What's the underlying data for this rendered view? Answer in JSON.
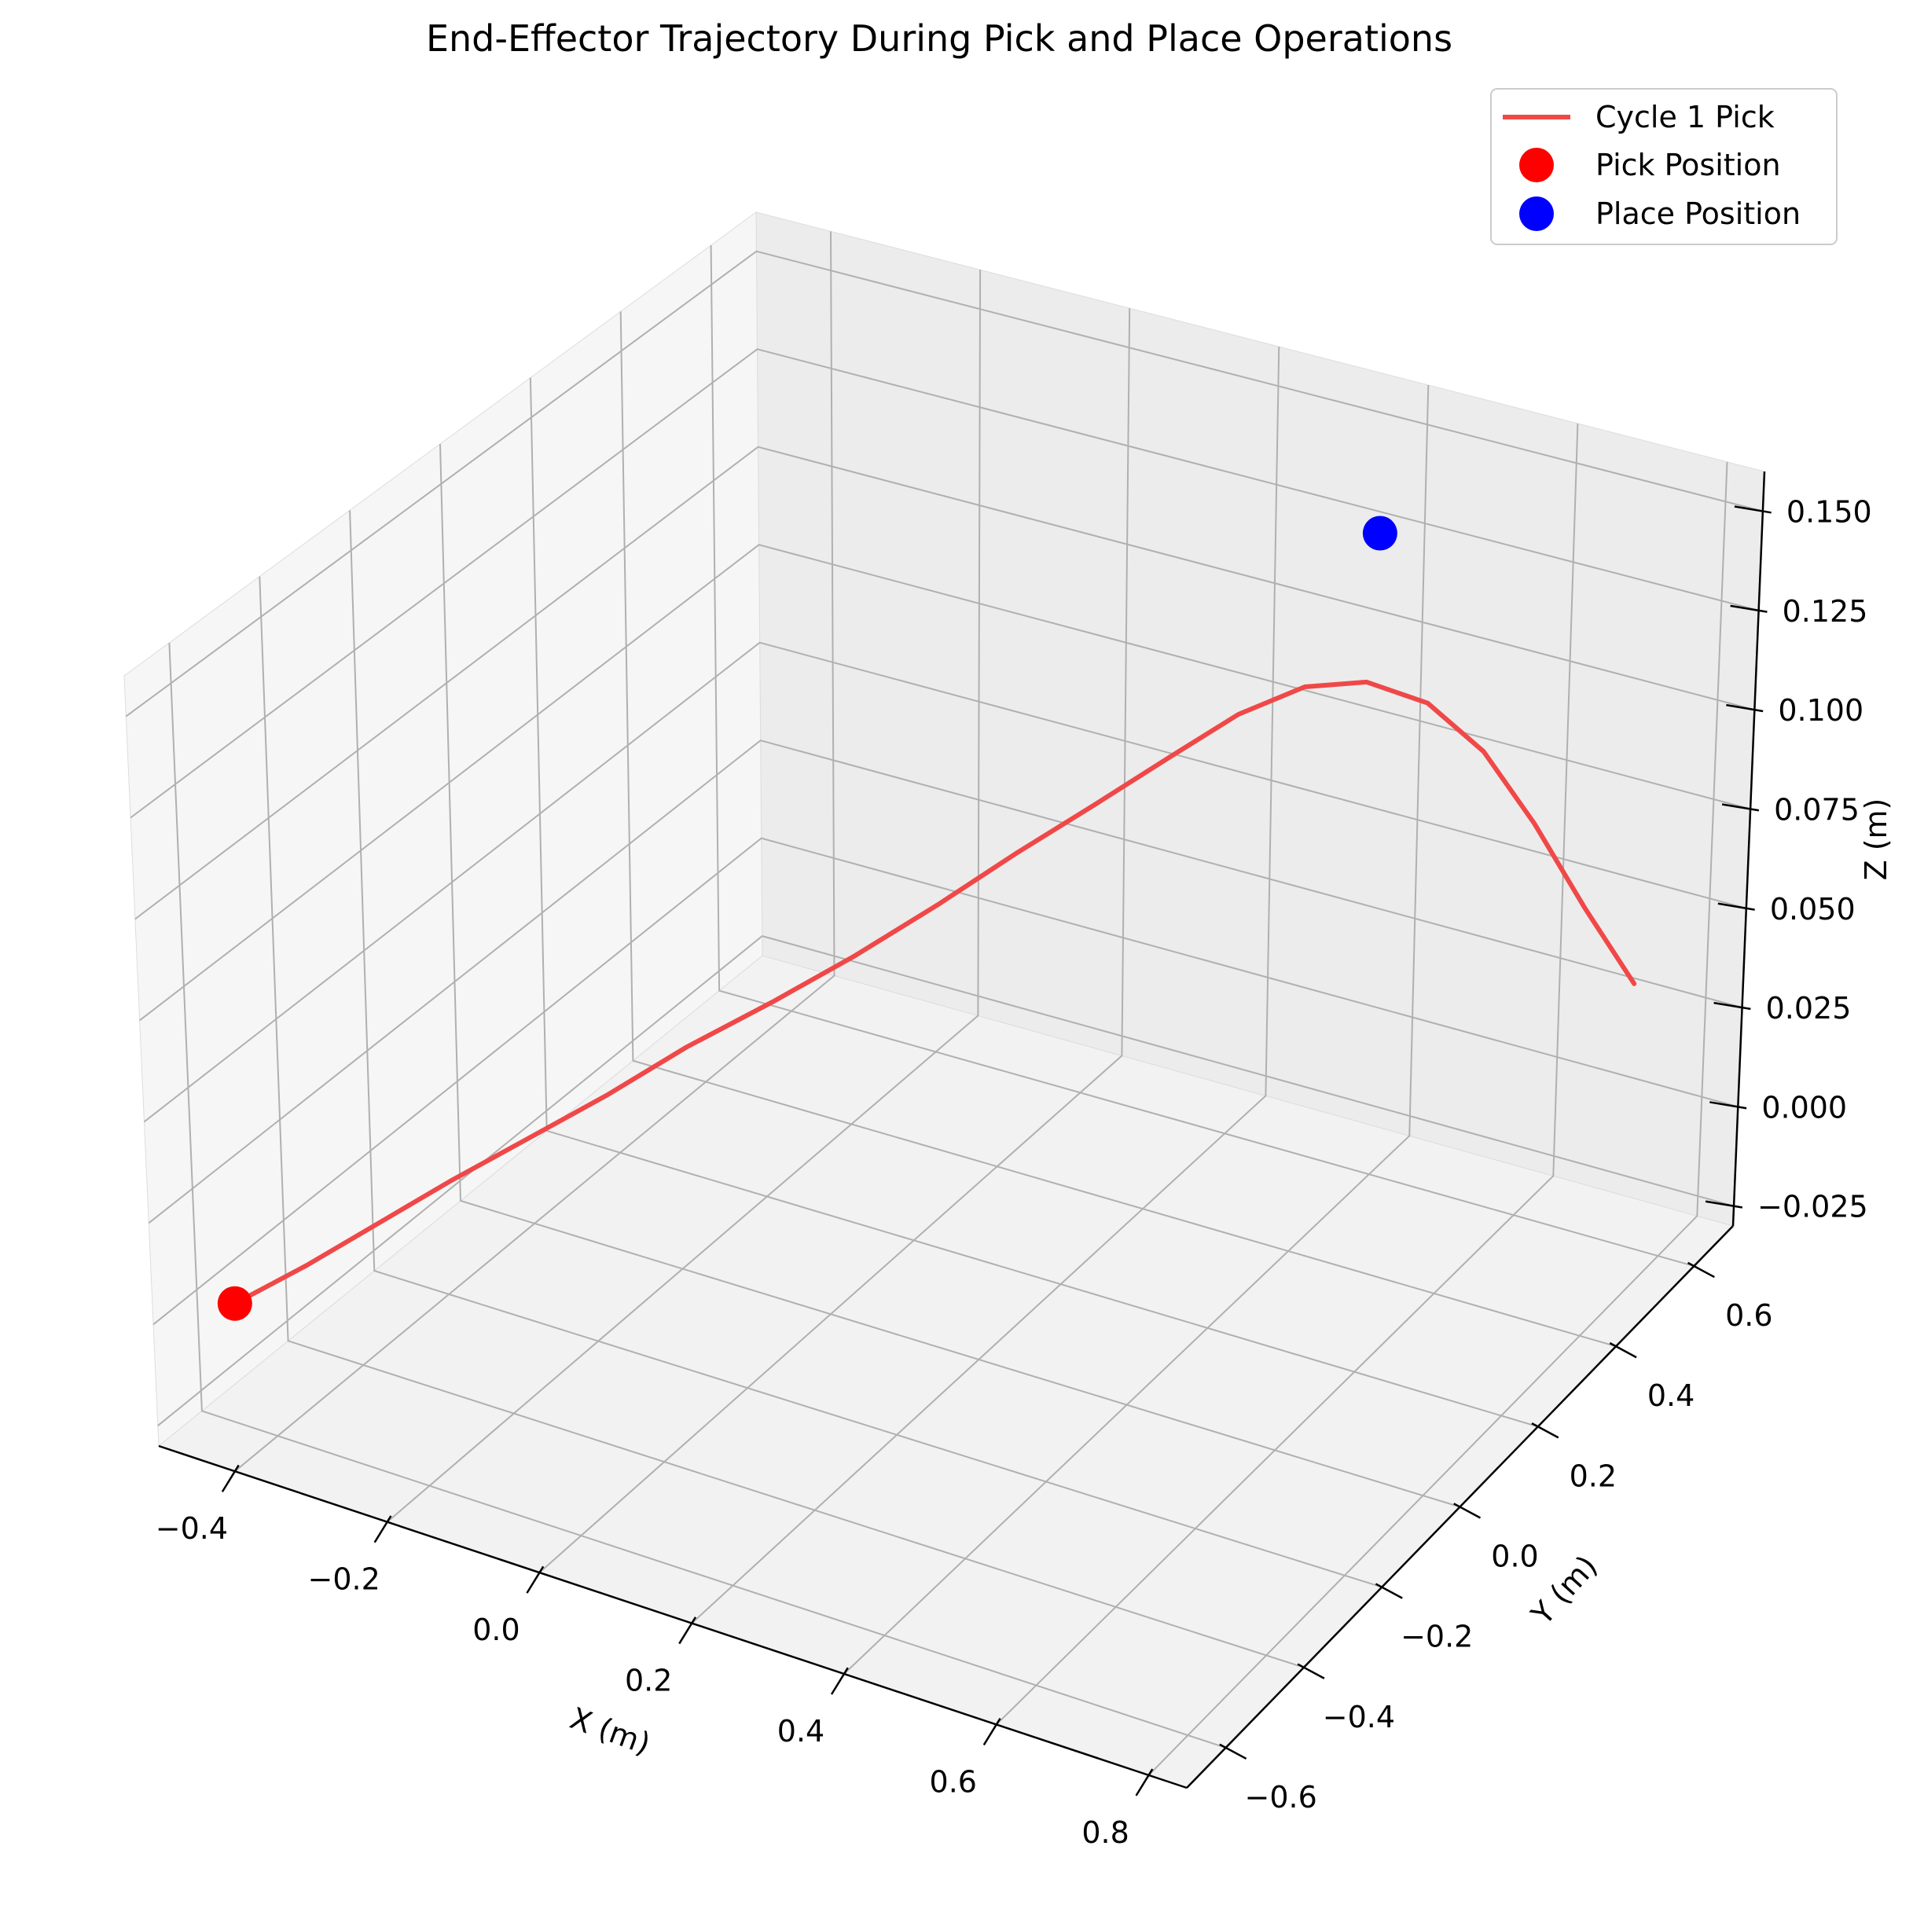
{
  "chart_data": {
    "type": "line",
    "projection": "3d",
    "title": "End-Effector Trajectory During Pick and Place Operations",
    "xlabel": "X (m)",
    "ylabel": "Y (m)",
    "zlabel": "Z (m)",
    "xlim": [
      -0.5,
      0.85
    ],
    "ylim": [
      -0.7,
      0.7
    ],
    "zlim": [
      -0.03,
      0.16
    ],
    "x_ticks": [
      "−0.4",
      "−0.2",
      "0.0",
      "0.2",
      "0.4",
      "0.6",
      "0.8"
    ],
    "y_ticks": [
      "−0.6",
      "−0.4",
      "−0.2",
      "0.0",
      "0.2",
      "0.4",
      "0.6"
    ],
    "z_ticks": [
      "−0.025",
      "0.000",
      "0.025",
      "0.050",
      "0.075",
      "0.100",
      "0.125",
      "0.150"
    ],
    "grid": true,
    "legend_position": "top-right",
    "series": [
      {
        "name": "Cycle 1 Pick",
        "kind": "line",
        "color": "#f04848",
        "points": [
          [
            -0.45,
            -0.6,
            0.0
          ],
          [
            -0.4,
            -0.52,
            0.006
          ],
          [
            -0.35,
            -0.44,
            0.013
          ],
          [
            -0.3,
            -0.36,
            0.02
          ],
          [
            -0.24,
            -0.28,
            0.028
          ],
          [
            -0.18,
            -0.2,
            0.036
          ],
          [
            -0.12,
            -0.12,
            0.045
          ],
          [
            -0.05,
            -0.04,
            0.054
          ],
          [
            0.02,
            0.03,
            0.064
          ],
          [
            0.09,
            0.1,
            0.075
          ],
          [
            0.16,
            0.16,
            0.087
          ],
          [
            0.23,
            0.22,
            0.098
          ],
          [
            0.3,
            0.28,
            0.109
          ],
          [
            0.36,
            0.33,
            0.118
          ],
          [
            0.42,
            0.38,
            0.123
          ],
          [
            0.48,
            0.42,
            0.123
          ],
          [
            0.54,
            0.46,
            0.116
          ],
          [
            0.6,
            0.49,
            0.103
          ],
          [
            0.66,
            0.51,
            0.085
          ],
          [
            0.72,
            0.53,
            0.064
          ],
          [
            0.78,
            0.55,
            0.045
          ]
        ]
      },
      {
        "name": "Pick Position",
        "kind": "scatter",
        "color": "#ff0000",
        "points": [
          [
            -0.45,
            -0.6,
            0.0
          ]
        ]
      },
      {
        "name": "Place Position",
        "kind": "scatter",
        "color": "#0000ff",
        "points": [
          [
            0.45,
            0.5,
            0.15
          ]
        ]
      }
    ]
  }
}
